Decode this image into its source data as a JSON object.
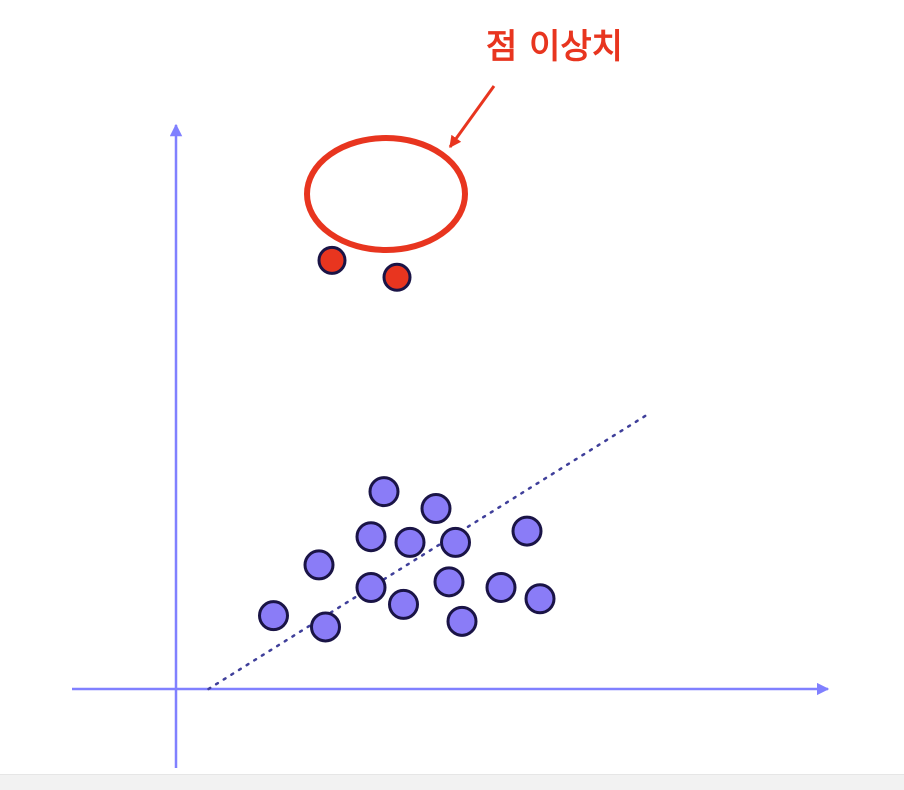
{
  "annotation": {
    "label": "점 이상치"
  },
  "colors": {
    "axis": "#8080ff",
    "normal_fill": "#8a7cf7",
    "point_stroke": "#1a1446",
    "outlier_fill": "#e8351f",
    "annotation": "#e8351f",
    "trend_line": "#3f3f9a"
  },
  "chart_data": {
    "type": "scatter",
    "xlim": [
      0,
      10
    ],
    "ylim": [
      0,
      10
    ],
    "grid": false,
    "normal_points": [
      {
        "x": 1.5,
        "y": 1.3
      },
      {
        "x": 2.3,
        "y": 1.1
      },
      {
        "x": 2.2,
        "y": 2.2
      },
      {
        "x": 3.0,
        "y": 1.8
      },
      {
        "x": 3.5,
        "y": 1.5
      },
      {
        "x": 3.0,
        "y": 2.7
      },
      {
        "x": 3.6,
        "y": 2.6
      },
      {
        "x": 4.4,
        "y": 1.2
      },
      {
        "x": 4.2,
        "y": 1.9
      },
      {
        "x": 4.3,
        "y": 2.6
      },
      {
        "x": 3.2,
        "y": 3.5
      },
      {
        "x": 4.0,
        "y": 3.2
      },
      {
        "x": 5.0,
        "y": 1.8
      },
      {
        "x": 5.4,
        "y": 2.8
      },
      {
        "x": 5.6,
        "y": 1.6
      }
    ],
    "outlier_points": [
      {
        "x": 2.4,
        "y": 7.6
      },
      {
        "x": 3.4,
        "y": 7.3
      }
    ],
    "trend_line": [
      {
        "x": 0.5,
        "y": 0.0
      },
      {
        "x": 7.3,
        "y": 4.9
      }
    ]
  }
}
